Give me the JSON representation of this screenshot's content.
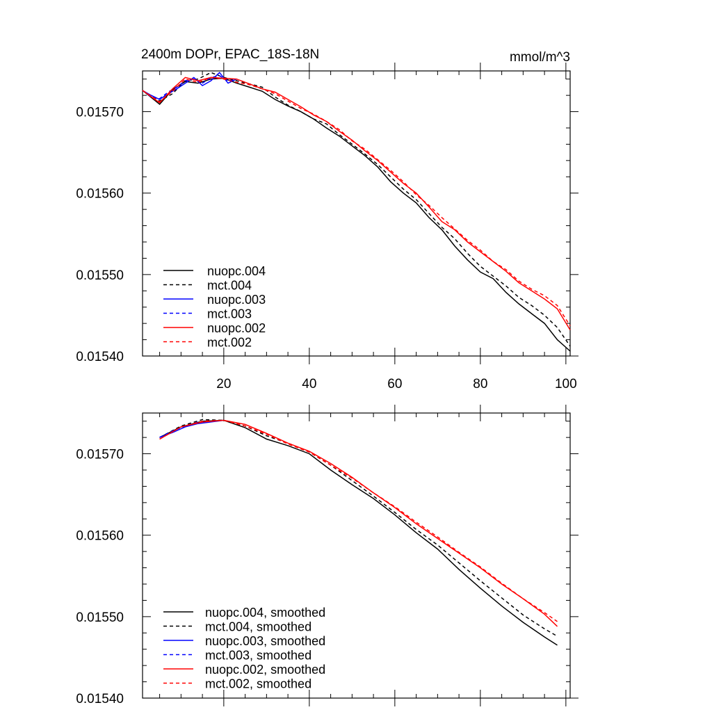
{
  "header": {
    "title": "2400m DOPr, EPAC_18S-18N",
    "units": "mmol/m^3"
  },
  "chart_data": [
    {
      "type": "line",
      "panel": "top",
      "xlim": [
        1,
        101
      ],
      "ylim": [
        0.0154,
        0.01575
      ],
      "xticks": [
        20,
        40,
        60,
        80,
        100
      ],
      "xtick_labels": [
        "20",
        "40",
        "60",
        "80",
        "100"
      ],
      "yticks": [
        0.0154,
        0.0155,
        0.0156,
        0.0157
      ],
      "ytick_labels": [
        "0.01540",
        "0.01550",
        "0.01560",
        "0.01570"
      ],
      "legend_position": "bottom-left",
      "series": [
        {
          "name": "nuopc.004",
          "color": "#000000",
          "dash": "solid",
          "x": [
            1,
            5,
            8,
            11,
            14,
            17,
            20,
            23,
            26,
            29,
            32,
            35,
            38,
            41,
            44,
            47,
            50,
            53,
            56,
            59,
            62,
            65,
            68,
            71,
            74,
            77,
            80,
            83,
            86,
            89,
            92,
            95,
            98,
            101
          ],
          "y": [
            0.015726,
            0.015709,
            0.015727,
            0.015737,
            0.015735,
            0.01574,
            0.015741,
            0.015735,
            0.01573,
            0.015725,
            0.015715,
            0.015707,
            0.0157,
            0.015691,
            0.01568,
            0.01567,
            0.015658,
            0.015646,
            0.015632,
            0.015614,
            0.0156,
            0.015588,
            0.01557,
            0.015555,
            0.015535,
            0.015518,
            0.015503,
            0.015495,
            0.015478,
            0.015464,
            0.015452,
            0.01544,
            0.01542,
            0.015406
          ]
        },
        {
          "name": "mct.004",
          "color": "#000000",
          "dash": "dashed",
          "x": [
            1,
            5,
            8,
            11,
            14,
            17,
            20,
            23,
            26,
            29,
            32,
            35,
            38,
            41,
            44,
            47,
            50,
            53,
            56,
            59,
            62,
            65,
            68,
            71,
            74,
            77,
            80,
            83,
            86,
            89,
            92,
            95,
            98,
            101
          ],
          "y": [
            0.015726,
            0.015713,
            0.015722,
            0.015738,
            0.01574,
            0.015748,
            0.015742,
            0.015738,
            0.015734,
            0.01573,
            0.015718,
            0.015708,
            0.0157,
            0.015691,
            0.015685,
            0.015672,
            0.01566,
            0.015648,
            0.015635,
            0.01562,
            0.015605,
            0.015592,
            0.015575,
            0.015558,
            0.015544,
            0.015526,
            0.01551,
            0.015498,
            0.015486,
            0.015472,
            0.015462,
            0.01545,
            0.015435,
            0.015412
          ]
        },
        {
          "name": "nuopc.003",
          "color": "#0000ff",
          "dash": "solid",
          "x": [
            1,
            3,
            5,
            7,
            9,
            11,
            13,
            15,
            17,
            19,
            21,
            23
          ],
          "y": [
            0.015726,
            0.01572,
            0.015715,
            0.015722,
            0.015728,
            0.015735,
            0.015742,
            0.015732,
            0.015738,
            0.015748,
            0.015735,
            0.01574
          ]
        },
        {
          "name": "mct.003",
          "color": "#0000ff",
          "dash": "dashed",
          "x": [
            1,
            3,
            5,
            7,
            9,
            11,
            13,
            15,
            17,
            19,
            21,
            23
          ],
          "y": [
            0.015726,
            0.015718,
            0.015716,
            0.015724,
            0.01573,
            0.015738,
            0.01574,
            0.015735,
            0.015742,
            0.015744,
            0.015738,
            0.015739
          ]
        },
        {
          "name": "nuopc.002",
          "color": "#ff0000",
          "dash": "solid",
          "x": [
            1,
            5,
            8,
            11,
            14,
            17,
            20,
            23,
            26,
            29,
            32,
            35,
            38,
            41,
            44,
            47,
            50,
            53,
            56,
            59,
            62,
            65,
            68,
            71,
            74,
            77,
            80,
            83,
            86,
            89,
            92,
            95,
            98,
            101
          ],
          "y": [
            0.015726,
            0.015711,
            0.015728,
            0.015742,
            0.015738,
            0.015742,
            0.015741,
            0.01574,
            0.015734,
            0.015728,
            0.015724,
            0.015715,
            0.015706,
            0.015696,
            0.015688,
            0.015676,
            0.015665,
            0.015652,
            0.01564,
            0.015626,
            0.015612,
            0.0156,
            0.015583,
            0.015565,
            0.015555,
            0.01554,
            0.015528,
            0.015516,
            0.015504,
            0.01549,
            0.01548,
            0.01547,
            0.015458,
            0.015432
          ]
        },
        {
          "name": "mct.002",
          "color": "#ff0000",
          "dash": "dashed",
          "x": [
            1,
            5,
            8,
            11,
            14,
            17,
            20,
            23,
            26,
            29,
            32,
            35,
            38,
            41,
            44,
            47,
            50,
            53,
            56,
            59,
            62,
            65,
            68,
            71,
            74,
            77,
            80,
            83,
            86,
            89,
            92,
            95,
            98,
            101
          ],
          "y": [
            0.015726,
            0.015712,
            0.015725,
            0.01574,
            0.015736,
            0.015742,
            0.01574,
            0.015736,
            0.015733,
            0.015728,
            0.015722,
            0.015713,
            0.015704,
            0.015697,
            0.015688,
            0.015678,
            0.015664,
            0.015654,
            0.015641,
            0.015628,
            0.015614,
            0.015598,
            0.015585,
            0.01557,
            0.015556,
            0.015542,
            0.01553,
            0.015516,
            0.015506,
            0.015492,
            0.015482,
            0.015474,
            0.015462,
            0.015437
          ]
        }
      ]
    },
    {
      "type": "line",
      "panel": "bottom",
      "xlim": [
        1,
        101
      ],
      "ylim": [
        0.0154,
        0.01575
      ],
      "xticks": [
        20,
        40,
        60,
        80,
        100
      ],
      "yticks": [
        0.0154,
        0.0155,
        0.0156,
        0.0157
      ],
      "ytick_labels": [
        "0.01540",
        "0.01550",
        "0.01560",
        "0.01570"
      ],
      "legend_position": "bottom-left",
      "series": [
        {
          "name": "nuopc.004, smoothed",
          "color": "#000000",
          "dash": "solid",
          "x": [
            5,
            10,
            15,
            20,
            25,
            30,
            35,
            40,
            45,
            50,
            55,
            60,
            65,
            70,
            75,
            80,
            85,
            90,
            95,
            98
          ],
          "y": [
            0.01572,
            0.015733,
            0.01574,
            0.015741,
            0.015732,
            0.015718,
            0.01571,
            0.0157,
            0.01568,
            0.015662,
            0.015645,
            0.015625,
            0.015603,
            0.015583,
            0.015558,
            0.015535,
            0.015513,
            0.015493,
            0.015475,
            0.015465
          ]
        },
        {
          "name": "mct.004, smoothed",
          "color": "#000000",
          "dash": "dashed",
          "x": [
            5,
            10,
            15,
            20,
            25,
            30,
            35,
            40,
            45,
            50,
            55,
            60,
            65,
            70,
            75,
            80,
            85,
            90,
            95,
            98
          ],
          "y": [
            0.01572,
            0.015734,
            0.015742,
            0.015741,
            0.015734,
            0.015722,
            0.015713,
            0.015702,
            0.015686,
            0.015667,
            0.015648,
            0.015628,
            0.015607,
            0.015588,
            0.015566,
            0.015544,
            0.015523,
            0.015502,
            0.015485,
            0.015476
          ]
        },
        {
          "name": "nuopc.003, smoothed",
          "color": "#0000ff",
          "dash": "solid",
          "x": [
            5,
            8,
            11,
            14,
            17,
            20
          ],
          "y": [
            0.01572,
            0.015726,
            0.015733,
            0.015737,
            0.015739,
            0.015741
          ]
        },
        {
          "name": "mct.003, smoothed",
          "color": "#0000ff",
          "dash": "dashed",
          "x": [
            5,
            8,
            11,
            14,
            17,
            20
          ],
          "y": [
            0.01572,
            0.015728,
            0.015734,
            0.015739,
            0.01574,
            0.015741
          ]
        },
        {
          "name": "nuopc.002, smoothed",
          "color": "#ff0000",
          "dash": "solid",
          "x": [
            5,
            10,
            15,
            20,
            25,
            30,
            35,
            40,
            45,
            50,
            55,
            60,
            65,
            70,
            75,
            80,
            85,
            90,
            95,
            98
          ],
          "y": [
            0.015718,
            0.015733,
            0.015739,
            0.015741,
            0.015736,
            0.015725,
            0.015713,
            0.015703,
            0.015688,
            0.015671,
            0.015652,
            0.015634,
            0.015614,
            0.015596,
            0.015578,
            0.01556,
            0.01554,
            0.015522,
            0.015503,
            0.015488
          ]
        },
        {
          "name": "mct.002, smoothed",
          "color": "#ff0000",
          "dash": "dashed",
          "x": [
            5,
            10,
            15,
            20,
            25,
            30,
            35,
            40,
            45,
            50,
            55,
            60,
            65,
            70,
            75,
            80,
            85,
            90,
            95,
            98
          ],
          "y": [
            0.015718,
            0.015733,
            0.01574,
            0.015741,
            0.015734,
            0.015724,
            0.015712,
            0.015702,
            0.015686,
            0.01567,
            0.015652,
            0.015635,
            0.015616,
            0.015598,
            0.015579,
            0.015561,
            0.015541,
            0.015522,
            0.015505,
            0.015494
          ]
        }
      ]
    }
  ]
}
